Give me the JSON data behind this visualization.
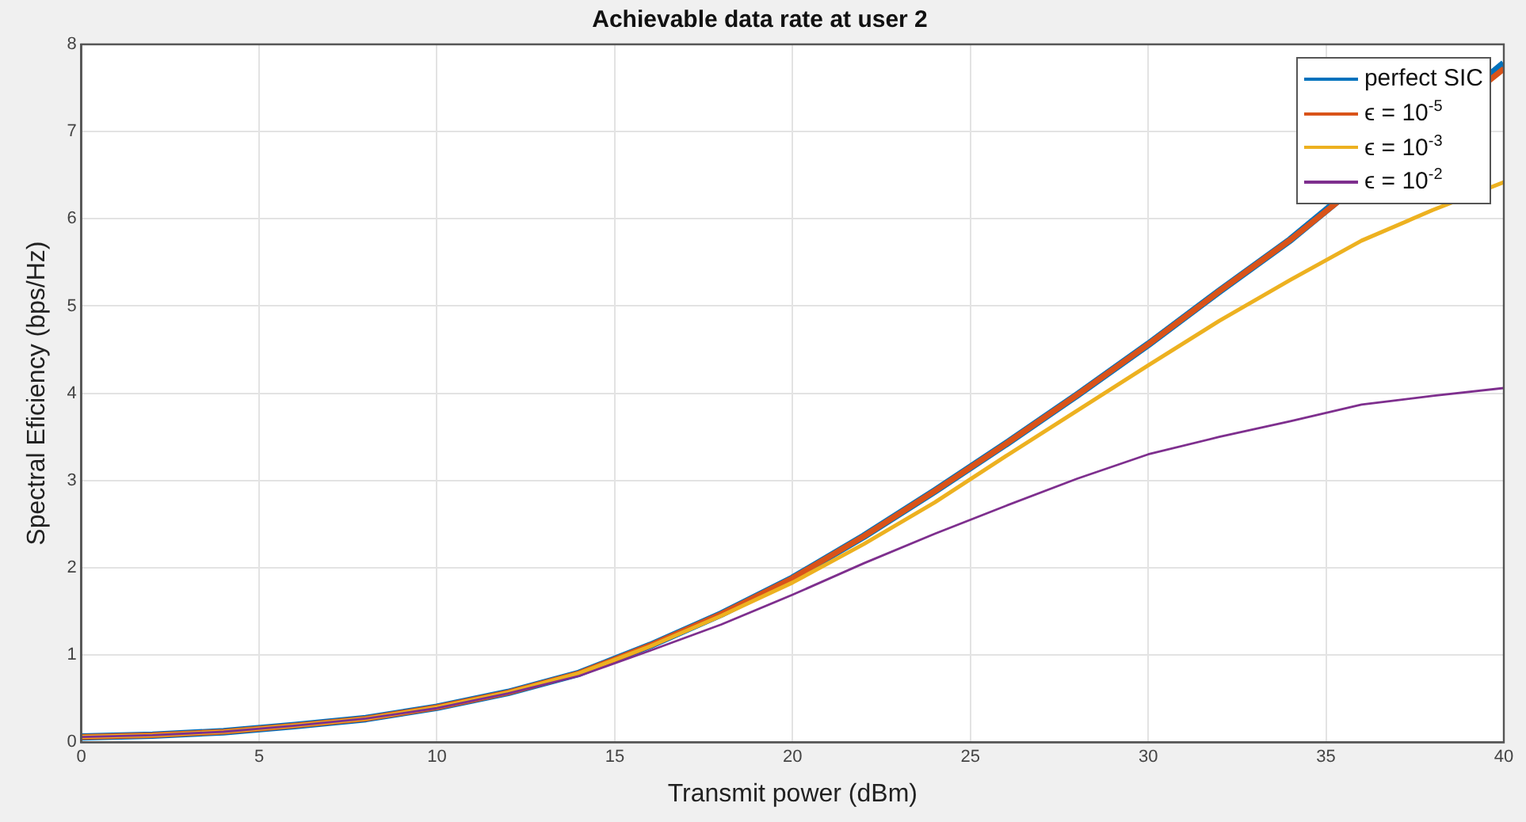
{
  "chart_data": {
    "type": "line",
    "title": "Achievable data rate at user 2",
    "xlabel": "Transmit power (dBm)",
    "ylabel": "Spectral Eficiency (bps/Hz)",
    "x": [
      0,
      2,
      4,
      6,
      8,
      10,
      12,
      14,
      16,
      18,
      20,
      22,
      24,
      26,
      28,
      30,
      32,
      34,
      36,
      38,
      40
    ],
    "series": [
      {
        "name": "perfect SIC",
        "color": "#0072bd",
        "values": [
          0.06,
          0.08,
          0.12,
          0.19,
          0.27,
          0.4,
          0.57,
          0.79,
          1.11,
          1.47,
          1.88,
          2.36,
          2.88,
          3.42,
          3.98,
          4.56,
          5.17,
          5.76,
          null,
          null,
          7.78
        ]
      },
      {
        "name": "ϵ = 10$^{-5}$",
        "color": "#d95319",
        "values": [
          0.06,
          0.08,
          0.12,
          0.19,
          0.27,
          0.4,
          0.57,
          0.79,
          1.11,
          1.47,
          1.88,
          2.36,
          2.88,
          3.42,
          3.98,
          4.56,
          5.17,
          5.76,
          null,
          null,
          7.72
        ]
      },
      {
        "name": "ϵ = 10$^{-3}$",
        "color": "#edb120",
        "values": [
          0.06,
          0.08,
          0.12,
          0.19,
          0.27,
          0.4,
          0.57,
          0.79,
          1.1,
          1.45,
          1.83,
          2.27,
          2.75,
          3.28,
          3.8,
          4.32,
          4.83,
          5.3,
          5.75,
          6.1,
          6.42
        ]
      },
      {
        "name": "ϵ = 10$^{-2}$",
        "color": "#7e2f8e",
        "values": [
          0.06,
          0.08,
          0.12,
          0.19,
          0.27,
          0.39,
          0.56,
          0.76,
          1.05,
          1.35,
          1.69,
          2.05,
          2.39,
          2.71,
          3.02,
          3.3,
          3.5,
          3.68,
          3.87,
          3.97,
          4.06
        ]
      }
    ],
    "xlim": [
      0,
      40
    ],
    "xticks": [
      0,
      5,
      10,
      15,
      20,
      25,
      30,
      35,
      40
    ],
    "ylim": [
      0,
      8
    ],
    "yticks": [
      0,
      1,
      2,
      3,
      4,
      5,
      6,
      7,
      8
    ],
    "grid": true,
    "legend": "top right",
    "marker": "none",
    "line_style": "solid"
  }
}
